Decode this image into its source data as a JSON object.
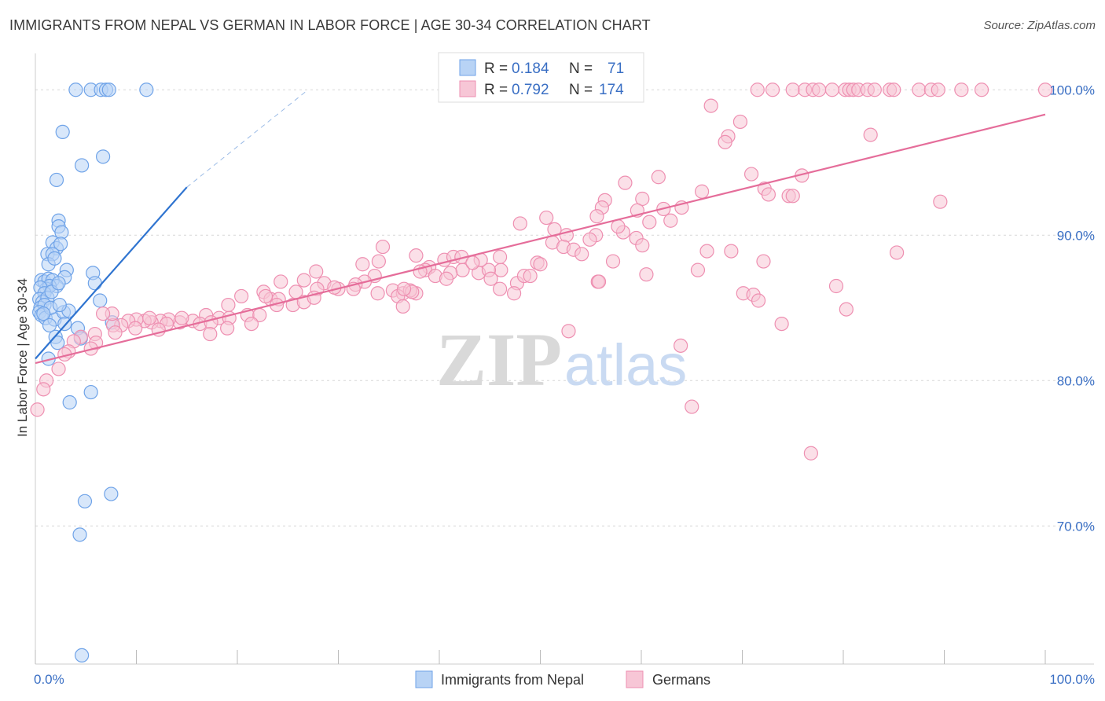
{
  "header": {
    "title": "IMMIGRANTS FROM NEPAL VS GERMAN IN LABOR FORCE | AGE 30-34 CORRELATION CHART",
    "source": "Source: ZipAtlas.com"
  },
  "watermark": {
    "zip": "ZIP",
    "atlas": "atlas"
  },
  "chart_data": {
    "type": "scatter",
    "ylabel": "In Labor Force | Age 30-34",
    "xlim": [
      0,
      100
    ],
    "ylim": [
      60.5,
      102.5
    ],
    "x_tick_labels": {
      "left": "0.0%",
      "right": "100.0%"
    },
    "y_ticks": [
      {
        "value": 100,
        "label": "100.0%"
      },
      {
        "value": 90,
        "label": "90.0%"
      },
      {
        "value": 80,
        "label": "80.0%"
      },
      {
        "value": 70,
        "label": "70.0%"
      }
    ],
    "grid": true,
    "legend_position": "top-center",
    "legend": [
      {
        "r_label": "R =",
        "r_value": "0.184",
        "n_label": "N =",
        "n_value": "71",
        "color": "#6fa3e8"
      },
      {
        "r_label": "R =",
        "r_value": "0.792",
        "n_label": "N =",
        "n_value": "174",
        "color": "#f2a3be"
      }
    ],
    "series": [
      {
        "name": "Immigrants from Nepal",
        "color": "#6fa3e8",
        "fill": "#b8d3f5",
        "trend": {
          "x1": 0,
          "y1": 81.5,
          "x2": 15,
          "y2": 93.3,
          "dash_to_x": 27,
          "dash_to_y": 100
        },
        "points": [
          [
            4.0,
            100
          ],
          [
            5.5,
            100
          ],
          [
            6.5,
            100
          ],
          [
            7.0,
            100
          ],
          [
            7.3,
            100
          ],
          [
            11.0,
            100
          ],
          [
            2.7,
            97.1
          ],
          [
            4.6,
            94.8
          ],
          [
            6.7,
            95.4
          ],
          [
            2.1,
            93.8
          ],
          [
            2.3,
            91.0
          ],
          [
            2.3,
            90.6
          ],
          [
            2.6,
            90.2
          ],
          [
            1.7,
            89.5
          ],
          [
            2.1,
            89.1
          ],
          [
            2.5,
            89.4
          ],
          [
            1.2,
            88.7
          ],
          [
            1.7,
            88.7
          ],
          [
            1.3,
            88.0
          ],
          [
            1.9,
            88.4
          ],
          [
            3.1,
            87.6
          ],
          [
            2.9,
            87.1
          ],
          [
            0.6,
            86.9
          ],
          [
            0.9,
            86.8
          ],
          [
            1.3,
            87.0
          ],
          [
            1.7,
            86.9
          ],
          [
            2.1,
            86.5
          ],
          [
            1.1,
            86.3
          ],
          [
            1.4,
            86.5
          ],
          [
            0.5,
            86.4
          ],
          [
            0.9,
            86.0
          ],
          [
            0.4,
            85.6
          ],
          [
            0.7,
            85.4
          ],
          [
            1.2,
            85.7
          ],
          [
            1.6,
            86.1
          ],
          [
            2.3,
            86.7
          ],
          [
            0.5,
            85.0
          ],
          [
            0.9,
            85.2
          ],
          [
            0.4,
            84.7
          ],
          [
            0.6,
            84.5
          ],
          [
            1.0,
            84.3
          ],
          [
            1.9,
            84.2
          ],
          [
            2.8,
            84.7
          ],
          [
            3.3,
            84.8
          ],
          [
            1.5,
            85.0
          ],
          [
            2.4,
            85.2
          ],
          [
            0.8,
            84.6
          ],
          [
            5.7,
            87.4
          ],
          [
            5.9,
            86.7
          ],
          [
            6.4,
            85.5
          ],
          [
            1.4,
            83.8
          ],
          [
            2.9,
            83.9
          ],
          [
            4.2,
            83.6
          ],
          [
            2.0,
            83.0
          ],
          [
            2.2,
            82.6
          ],
          [
            4.5,
            82.9
          ],
          [
            7.6,
            84.0
          ],
          [
            1.3,
            81.5
          ],
          [
            5.5,
            79.2
          ],
          [
            3.4,
            78.5
          ],
          [
            7.5,
            72.2
          ],
          [
            4.9,
            71.7
          ],
          [
            4.4,
            69.4
          ],
          [
            4.6,
            61.1
          ]
        ]
      },
      {
        "name": "Germans",
        "color": "#ee8fb1",
        "fill": "#f7c6d6",
        "trend": {
          "x1": 0,
          "y1": 81.2,
          "x2": 100,
          "y2": 98.3
        },
        "points": [
          [
            71.5,
            100
          ],
          [
            73.0,
            100
          ],
          [
            75.0,
            100
          ],
          [
            76.2,
            100
          ],
          [
            77.0,
            100
          ],
          [
            77.6,
            100
          ],
          [
            78.9,
            100
          ],
          [
            80.2,
            100
          ],
          [
            80.6,
            100
          ],
          [
            81.0,
            100
          ],
          [
            81.5,
            100
          ],
          [
            82.4,
            100
          ],
          [
            83.1,
            100
          ],
          [
            84.6,
            100
          ],
          [
            85.0,
            100
          ],
          [
            87.5,
            100
          ],
          [
            88.7,
            100
          ],
          [
            89.4,
            100
          ],
          [
            91.7,
            100
          ],
          [
            93.7,
            100
          ],
          [
            100,
            100
          ],
          [
            66.9,
            98.9
          ],
          [
            69.8,
            97.8
          ],
          [
            68.6,
            96.8
          ],
          [
            68.3,
            96.4
          ],
          [
            82.7,
            96.9
          ],
          [
            61.7,
            94.0
          ],
          [
            70.9,
            94.2
          ],
          [
            75.9,
            94.1
          ],
          [
            58.4,
            93.6
          ],
          [
            72.2,
            93.2
          ],
          [
            66.0,
            93.0
          ],
          [
            72.6,
            92.8
          ],
          [
            74.6,
            92.7
          ],
          [
            75.0,
            92.7
          ],
          [
            60.1,
            92.5
          ],
          [
            56.4,
            92.4
          ],
          [
            59.6,
            91.7
          ],
          [
            56.1,
            91.9
          ],
          [
            64.0,
            91.9
          ],
          [
            62.2,
            91.8
          ],
          [
            60.8,
            90.9
          ],
          [
            62.9,
            91.0
          ],
          [
            55.6,
            91.3
          ],
          [
            50.6,
            91.2
          ],
          [
            58.2,
            90.2
          ],
          [
            59.5,
            89.8
          ],
          [
            60.1,
            89.3
          ],
          [
            55.5,
            90.0
          ],
          [
            57.7,
            90.6
          ],
          [
            52.6,
            90.0
          ],
          [
            51.4,
            90.4
          ],
          [
            51.2,
            89.5
          ],
          [
            48.0,
            90.8
          ],
          [
            52.3,
            89.2
          ],
          [
            53.3,
            89.0
          ],
          [
            54.1,
            88.7
          ],
          [
            54.9,
            89.7
          ],
          [
            57.2,
            88.2
          ],
          [
            66.5,
            88.9
          ],
          [
            68.9,
            88.9
          ],
          [
            72.1,
            88.2
          ],
          [
            85.3,
            88.8
          ],
          [
            89.6,
            92.3
          ],
          [
            47.7,
            86.7
          ],
          [
            48.4,
            87.2
          ],
          [
            46.1,
            87.6
          ],
          [
            43.9,
            87.4
          ],
          [
            44.9,
            87.6
          ],
          [
            42.3,
            87.6
          ],
          [
            41.1,
            87.4
          ],
          [
            39.0,
            87.8
          ],
          [
            40.5,
            88.3
          ],
          [
            41.4,
            88.5
          ],
          [
            42.2,
            88.5
          ],
          [
            44.1,
            88.3
          ],
          [
            46.0,
            88.5
          ],
          [
            43.3,
            88.1
          ],
          [
            49.7,
            88.1
          ],
          [
            50.0,
            88.0
          ],
          [
            37.7,
            88.6
          ],
          [
            34.4,
            89.2
          ],
          [
            34.0,
            88.2
          ],
          [
            32.4,
            88.0
          ],
          [
            33.6,
            87.2
          ],
          [
            32.6,
            86.8
          ],
          [
            38.6,
            87.6
          ],
          [
            38.1,
            87.5
          ],
          [
            39.6,
            87.2
          ],
          [
            40.7,
            87.0
          ],
          [
            45.1,
            87.0
          ],
          [
            49.0,
            87.2
          ],
          [
            55.7,
            86.8
          ],
          [
            55.8,
            86.8
          ],
          [
            60.5,
            87.3
          ],
          [
            31.7,
            86.6
          ],
          [
            30.0,
            86.3
          ],
          [
            28.6,
            86.7
          ],
          [
            27.8,
            87.5
          ],
          [
            27.9,
            86.3
          ],
          [
            25.8,
            86.1
          ],
          [
            26.6,
            86.9
          ],
          [
            24.3,
            86.8
          ],
          [
            22.6,
            86.1
          ],
          [
            23.3,
            85.6
          ],
          [
            24.1,
            85.6
          ],
          [
            25.5,
            85.2
          ],
          [
            23.9,
            85.2
          ],
          [
            35.4,
            86.2
          ],
          [
            36.4,
            86.0
          ],
          [
            37.7,
            86.0
          ],
          [
            47.4,
            86.0
          ],
          [
            37.1,
            86.2
          ],
          [
            46.0,
            86.3
          ],
          [
            22.8,
            85.8
          ],
          [
            20.4,
            85.8
          ],
          [
            19.1,
            85.2
          ],
          [
            29.6,
            86.4
          ],
          [
            31.5,
            86.3
          ],
          [
            33.9,
            86.0
          ],
          [
            35.9,
            85.8
          ],
          [
            37.3,
            86.1
          ],
          [
            36.5,
            86.3
          ],
          [
            70.1,
            86.0
          ],
          [
            71.1,
            85.9
          ],
          [
            71.6,
            85.5
          ],
          [
            79.3,
            86.5
          ],
          [
            80.3,
            84.9
          ],
          [
            16.9,
            84.5
          ],
          [
            18.2,
            84.3
          ],
          [
            19.2,
            84.3
          ],
          [
            21.0,
            84.5
          ],
          [
            22.2,
            84.5
          ],
          [
            15.6,
            84.1
          ],
          [
            14.3,
            84.0
          ],
          [
            16.3,
            83.9
          ],
          [
            13.2,
            84.2
          ],
          [
            12.4,
            84.1
          ],
          [
            11.5,
            84.0
          ],
          [
            10.8,
            84.1
          ],
          [
            10.0,
            84.2
          ],
          [
            9.2,
            84.1
          ],
          [
            8.5,
            83.8
          ],
          [
            7.7,
            83.8
          ],
          [
            7.6,
            84.6
          ],
          [
            11.3,
            84.3
          ],
          [
            13.0,
            83.9
          ],
          [
            14.5,
            84.3
          ],
          [
            17.4,
            84.0
          ],
          [
            12.2,
            83.5
          ],
          [
            9.9,
            83.6
          ],
          [
            7.9,
            83.3
          ],
          [
            17.3,
            83.2
          ],
          [
            19.0,
            83.6
          ],
          [
            21.4,
            83.9
          ],
          [
            26.6,
            85.4
          ],
          [
            27.6,
            85.7
          ],
          [
            36.4,
            85.1
          ],
          [
            6.7,
            84.6
          ],
          [
            5.9,
            83.2
          ],
          [
            4.5,
            83.0
          ],
          [
            3.8,
            82.7
          ],
          [
            6.0,
            82.6
          ],
          [
            5.5,
            82.2
          ],
          [
            3.3,
            82.0
          ],
          [
            2.9,
            81.8
          ],
          [
            1.1,
            80.0
          ],
          [
            2.3,
            80.8
          ],
          [
            0.8,
            79.4
          ],
          [
            0.2,
            78.0
          ],
          [
            52.8,
            83.4
          ],
          [
            73.9,
            83.9
          ],
          [
            63.9,
            82.4
          ],
          [
            65.6,
            87.6
          ],
          [
            65.0,
            78.2
          ],
          [
            76.8,
            75.0
          ]
        ]
      }
    ]
  }
}
